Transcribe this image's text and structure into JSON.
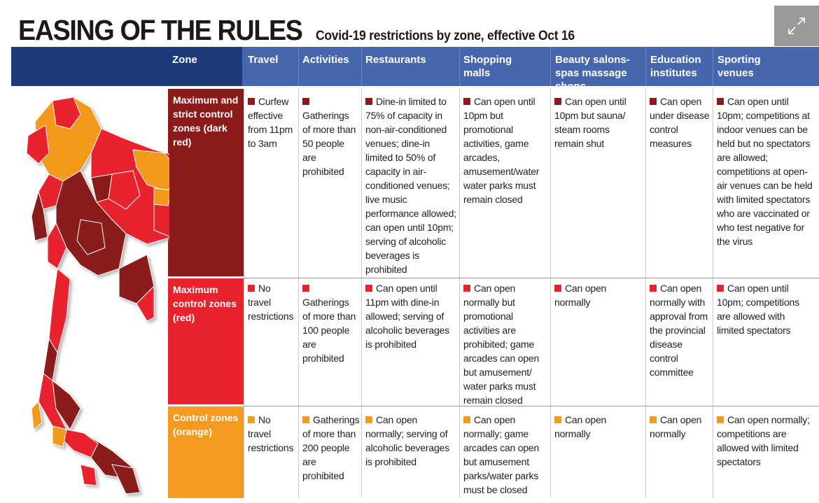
{
  "title": "EASING OF THE RULES",
  "subtitle": "Covid-19 restrictions by zone, effective Oct 16",
  "expand_button": {
    "icon": "expand-icon"
  },
  "colors": {
    "dark_red": "#8b1a1a",
    "red": "#e8222e",
    "orange": "#f39a1f",
    "header_navy": "#1e3a7b",
    "header_blue": "#4666ad"
  },
  "columns": [
    "Zone",
    "Travel",
    "Activities",
    "Restaurants",
    "Shopping malls",
    "Beauty salons-spas massage shops",
    "Education institutes",
    "Sporting venues"
  ],
  "rows": [
    {
      "zone": "Maximum and strict control zones (dark red)",
      "cells": [
        "Curfew effective from 11pm to 3am",
        "Gatherings of more than 50 people are prohibited",
        "Dine-in limited to 75% of capacity in non-air-conditioned venues; dine-in limited to 50% of capacity in air-conditioned venues; live music performance allowed; can open until 10pm; serving of alcoholic beverages is prohibited",
        "Can open until 10pm but promotional activities, game arcades, amusement/water water parks must remain closed",
        "Can open until 10pm but sauna/ steam rooms remain shut",
        "Can open under disease control measures",
        "Can open until 10pm; competitions at indoor venues can be held but no spectators are allowed; competitions at open-air venues can be held with limited spectators who are vaccinated or who test negative for the virus"
      ]
    },
    {
      "zone": "Maximum control zones (red)",
      "cells": [
        "No travel restrictions",
        "Gatherings of more than 100 people are prohibited",
        "Can open until 11pm with dine-in allowed; serving of alcoholic beverages is prohibited",
        "Can open normally but promotional activities are prohibited; game arcades can open but amusement/ water parks must remain closed",
        "Can open normally",
        "Can open normally with approval from the provincial disease control committee",
        "Can open until 10pm; competitions are allowed with limited spectators"
      ]
    },
    {
      "zone": "Control zones (orange)",
      "cells": [
        "No travel restrictions",
        "Gatherings of more than 200 people are prohibited",
        "Can open normally; serving of alcoholic beverages is prohibited",
        "Can open normally; game arcades can open but amusement parks/water parks must be closed",
        "Can open normally",
        "Can open normally",
        "Can open normally; competitions are allowed with limited spectators"
      ]
    }
  ]
}
